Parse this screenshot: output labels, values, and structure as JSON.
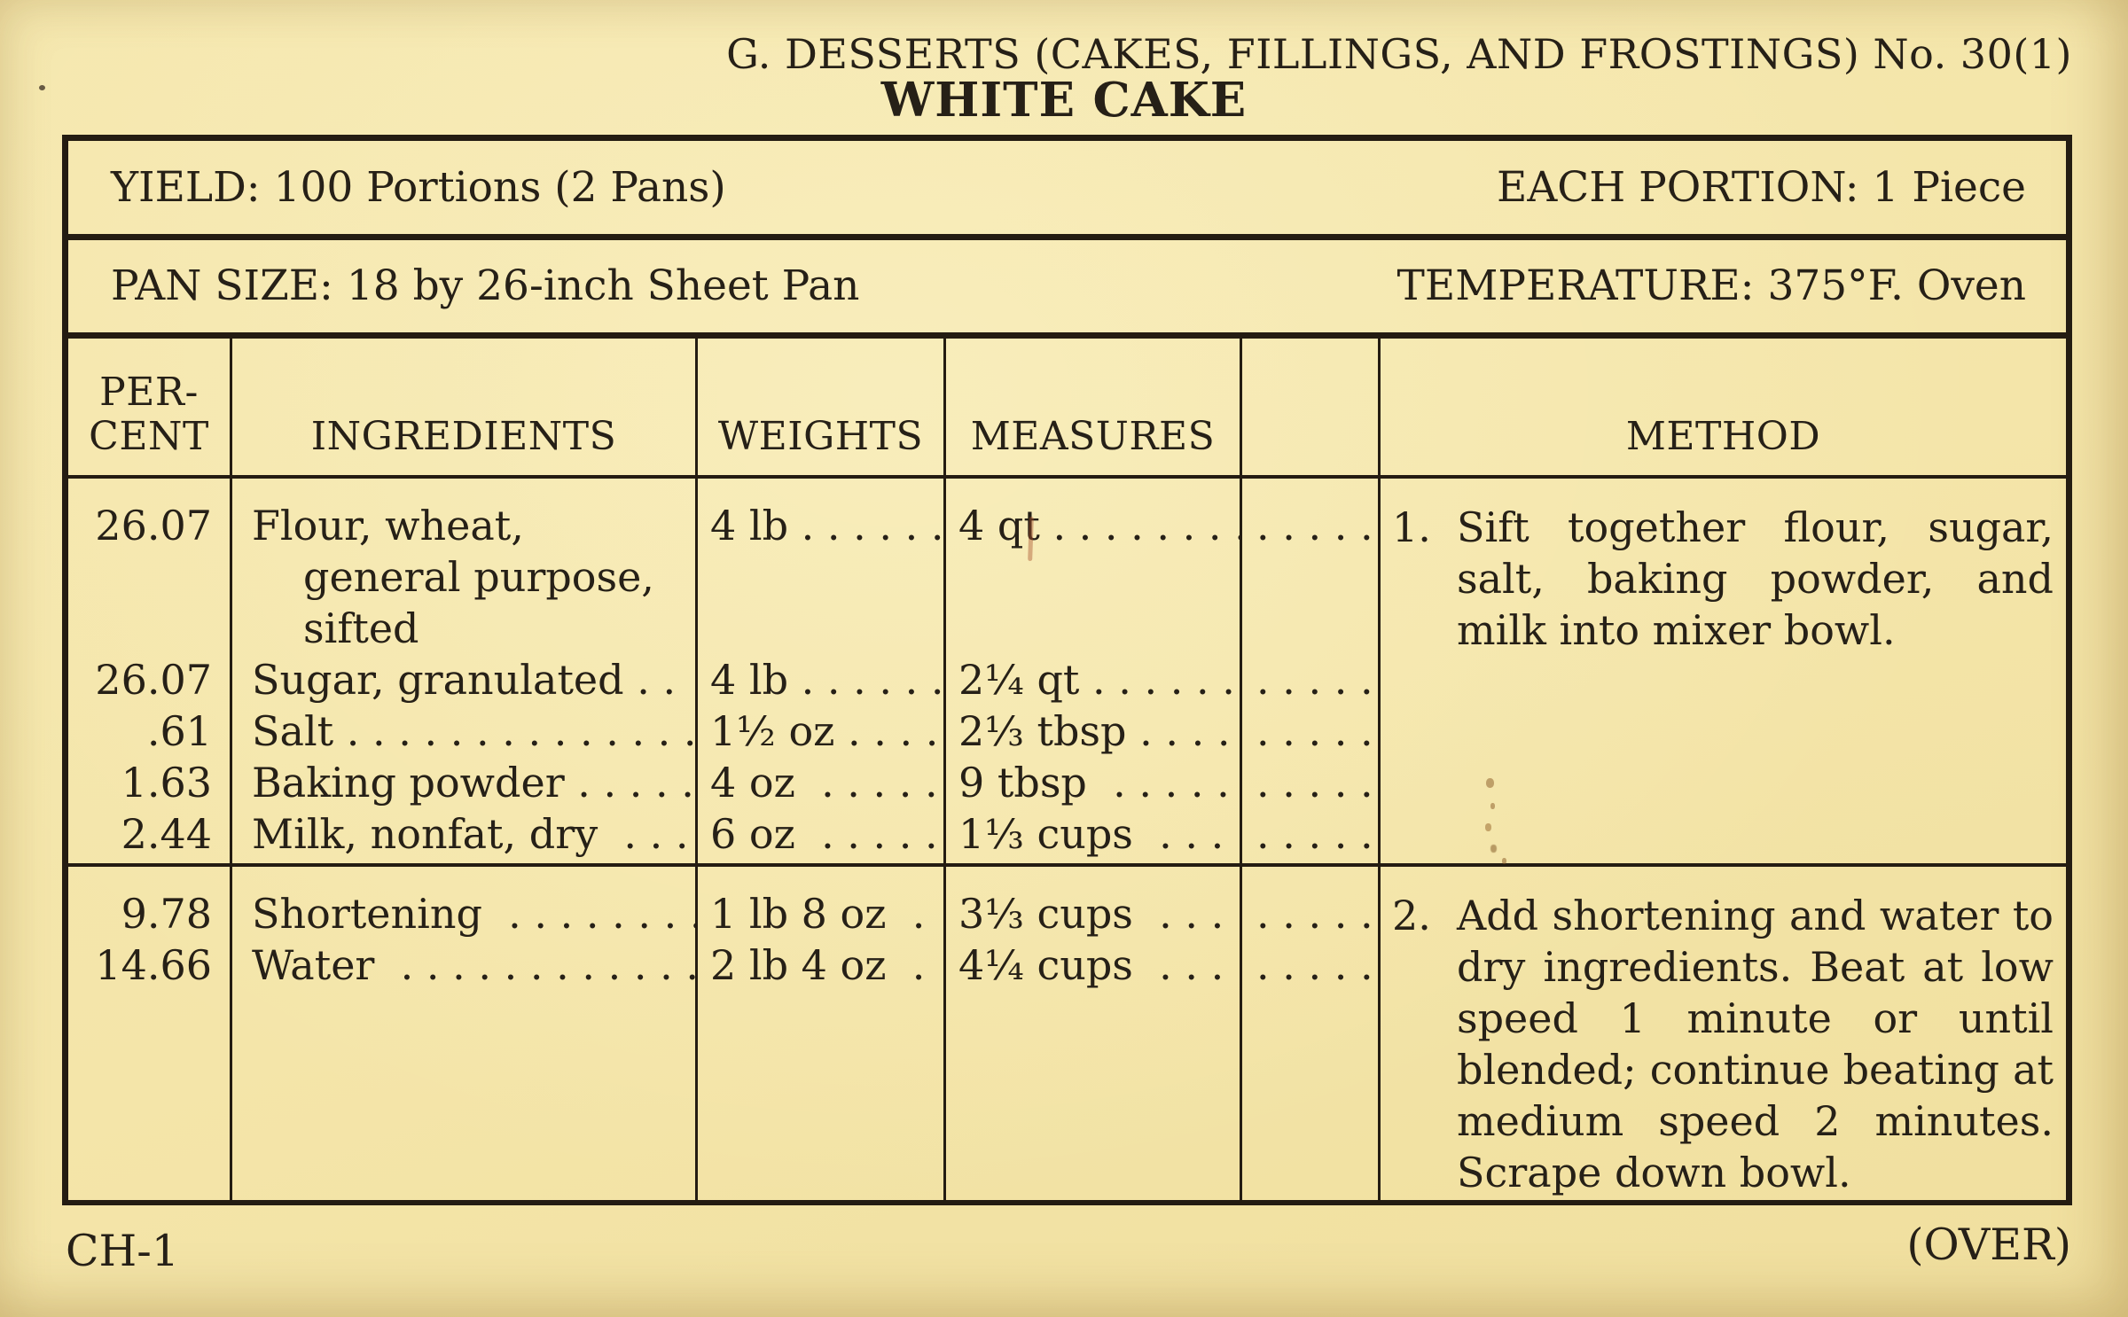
{
  "card": {
    "series_title": "G. DESSERTS (CAKES, FILLINGS, AND FROSTINGS) No. 30(1)",
    "recipe_title": "WHITE CAKE",
    "yield_label": "YIELD: 100 Portions (2 Pans)",
    "portion_label": "EACH PORTION: 1 Piece",
    "pan_size_label": "PAN SIZE: 18 by 26-inch Sheet Pan",
    "temperature_label": "TEMPERATURE: 375°F. Oven",
    "footer_left": "CH-1",
    "footer_right": "(OVER)"
  },
  "table": {
    "headers": {
      "percent_line1": "PER-",
      "percent_line2": "CENT",
      "ingredients": "INGREDIENTS",
      "weights": "WEIGHTS",
      "measures": "MEASURES",
      "extra": "",
      "method": "METHOD"
    },
    "group1": {
      "percent": [
        "26.07",
        "",
        "",
        "26.07",
        ".61",
        "1.63",
        "2.44"
      ],
      "ingredients": [
        "Flour, wheat,",
        "general purpose,",
        "sifted",
        "Sugar, granulated . .",
        "Salt . . . . . . . . . . . . . . .",
        "Baking powder . . . . .",
        "Milk, nonfat, dry  . . ."
      ],
      "weights": [
        "4 lb . . . . . .",
        "",
        "",
        "4 lb . . . . . .",
        "1½ oz . . . .",
        "4 oz  . . . . .",
        "6 oz  . . . . ."
      ],
      "measures": [
        "4 qt . . . . . . . .",
        "",
        "",
        "2¼ qt . . . . . .",
        "2⅓ tbsp . . . .",
        "9 tbsp  . . . . .",
        "1⅓ cups  . . ."
      ],
      "checks": [
        ". . . . . .",
        "",
        "",
        ". . . . . .",
        ". . . . . .",
        ". . . . . .",
        ". . . . . ."
      ],
      "method_number": "1.",
      "method_text": "Sift together flour, sugar, salt, baking powder, and milk into mixer bowl."
    },
    "group2": {
      "percent": [
        "9.78",
        "14.66"
      ],
      "ingredients": [
        "Shortening  . . . . . . . .",
        "Water  . . . . . . . . . . . . ."
      ],
      "weights": [
        "1 lb 8 oz  .",
        "2 lb 4 oz  ."
      ],
      "measures": [
        "3⅓ cups  . . .",
        "4¼ cups  . . ."
      ],
      "checks": [
        ". . . . . .",
        ". . . . . ."
      ],
      "method_number": "2.",
      "method_text": "Add shortening and water to dry ingredients. Beat at low speed 1 minute or until blended; continue beating at medium speed 2 minutes. Scrape down bowl."
    }
  }
}
